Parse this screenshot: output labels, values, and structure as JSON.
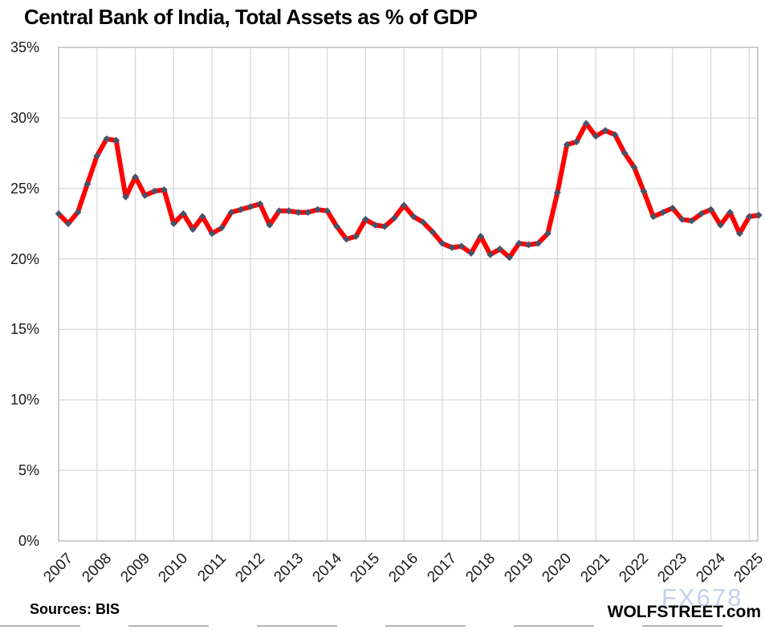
{
  "chart_data": {
    "type": "line",
    "title": "Central Bank of India, Total Assets as % of GDP",
    "xlabel": "",
    "ylabel": "",
    "ylim": [
      0,
      35
    ],
    "ytick_step": 5,
    "ytick_labels": [
      "0%",
      "5%",
      "10%",
      "15%",
      "20%",
      "25%",
      "30%",
      "35%"
    ],
    "grid": true,
    "x_years": [
      "2007",
      "2008",
      "2009",
      "2010",
      "2011",
      "2012",
      "2013",
      "2014",
      "2015",
      "2016",
      "2017",
      "2018",
      "2019",
      "2020",
      "2021",
      "2022",
      "2023",
      "2024",
      "2025"
    ],
    "x_start": "2007-Q1",
    "x_end": "2025-Q2",
    "frequency": "quarterly",
    "series": [
      {
        "name": "Central bank total assets as % of GDP",
        "line_color": "#fe0000",
        "marker_color": "#44546a",
        "marker_shape": "diamond",
        "values": [
          23.2,
          22.5,
          23.3,
          25.3,
          27.3,
          28.5,
          28.4,
          24.4,
          25.8,
          24.5,
          24.8,
          24.9,
          22.5,
          23.2,
          22.1,
          23.0,
          21.8,
          22.2,
          23.3,
          23.5,
          23.7,
          23.9,
          22.4,
          23.4,
          23.4,
          23.3,
          23.3,
          23.5,
          23.4,
          22.3,
          21.4,
          21.6,
          22.8,
          22.4,
          22.3,
          22.9,
          23.8,
          23.0,
          22.6,
          21.9,
          21.1,
          20.8,
          20.9,
          20.4,
          21.6,
          20.3,
          20.7,
          20.1,
          21.1,
          21.0,
          21.1,
          21.8,
          24.7,
          28.1,
          28.3,
          29.6,
          28.7,
          29.1,
          28.8,
          27.5,
          26.5,
          24.8,
          23.0,
          23.3,
          23.6,
          22.8,
          22.7,
          23.2,
          23.5,
          22.4,
          23.3,
          21.8,
          23.0,
          23.1
        ]
      }
    ],
    "colors": {
      "gridline": "#d9d9d9",
      "frame": "#c3c3c3",
      "background": "#ffffff"
    }
  },
  "footer": {
    "sources": "Sources: BIS",
    "brand": "WOLFSTREET.com",
    "watermark": "FX678"
  }
}
